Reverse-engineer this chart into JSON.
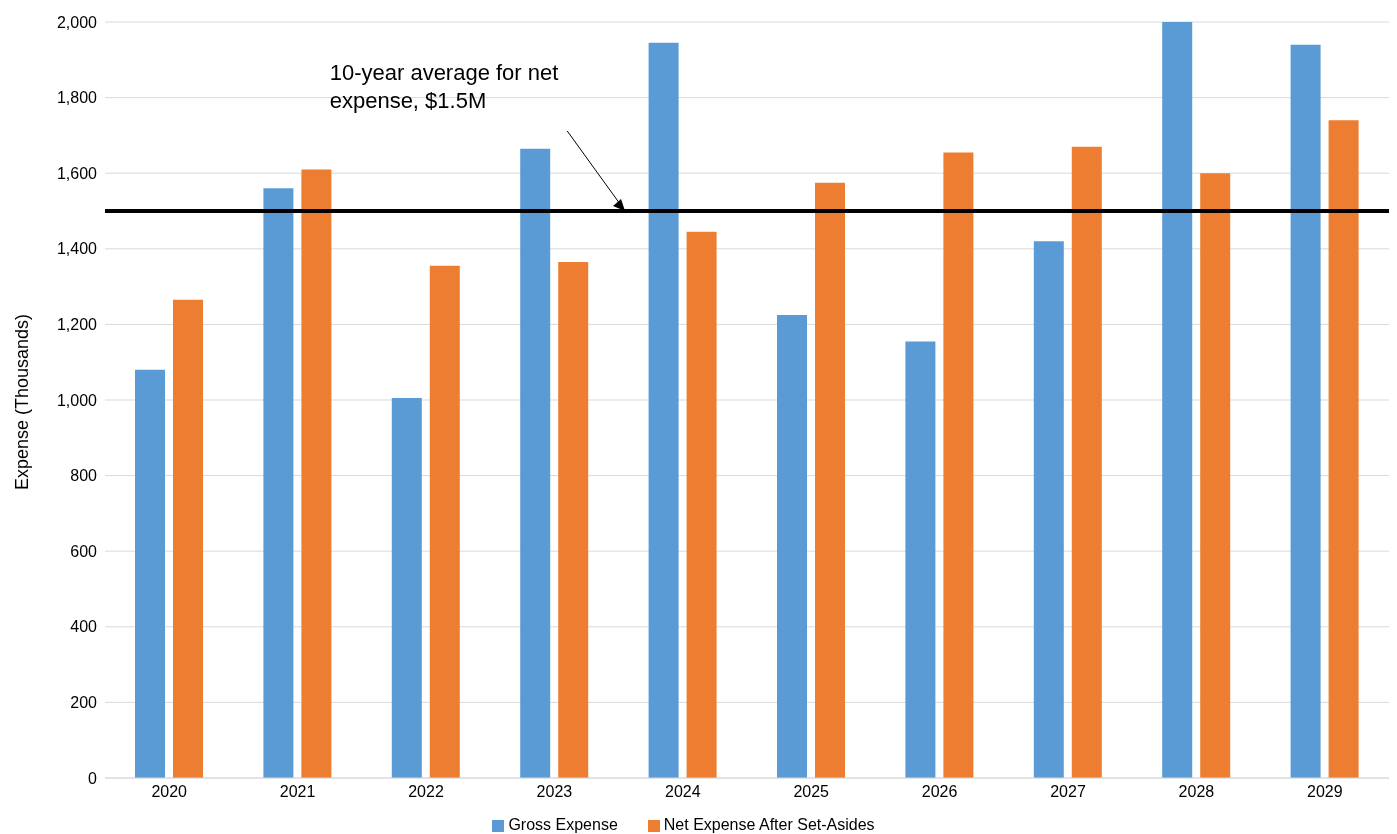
{
  "chart_data": {
    "type": "bar",
    "ylabel": "Expense (Thousands)",
    "categories": [
      "2020",
      "2021",
      "2022",
      "2023",
      "2024",
      "2025",
      "2026",
      "2027",
      "2028",
      "2029"
    ],
    "series": [
      {
        "name": "Gross Expense",
        "color": "#5b9bd5",
        "values": [
          1080,
          1560,
          1005,
          1665,
          1945,
          1225,
          1155,
          1420,
          2000,
          1940
        ]
      },
      {
        "name": "Net Expense After Set-Asides",
        "color": "#ed7d31",
        "values": [
          1265,
          1610,
          1355,
          1365,
          1445,
          1575,
          1655,
          1670,
          1600,
          1740
        ]
      }
    ],
    "ylim": [
      0,
      2000
    ],
    "yticks": [
      {
        "value": 0,
        "label": "0"
      },
      {
        "value": 200,
        "label": "200"
      },
      {
        "value": 400,
        "label": "400"
      },
      {
        "value": 600,
        "label": "600"
      },
      {
        "value": 800,
        "label": "800"
      },
      {
        "value": 1000,
        "label": "1,000"
      },
      {
        "value": 1200,
        "label": "1,200"
      },
      {
        "value": 1400,
        "label": "1,400"
      },
      {
        "value": 1600,
        "label": "1,600"
      },
      {
        "value": 1800,
        "label": "1,800"
      },
      {
        "value": 2000,
        "label": "2,000"
      }
    ],
    "ref_lines": [
      {
        "axis": "y",
        "value": 1500,
        "label": "10-year average for net expense, $1.5M",
        "color": "#000000"
      }
    ],
    "grid": "y",
    "legend": "bottom"
  }
}
